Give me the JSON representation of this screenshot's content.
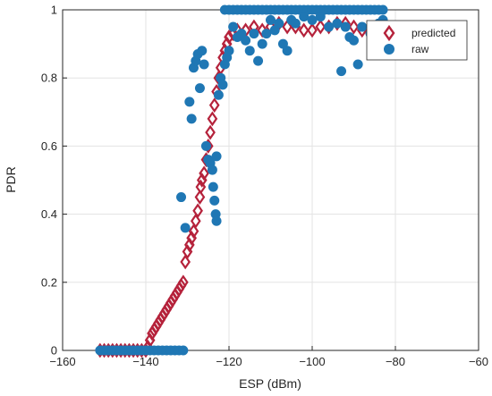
{
  "chart_data": {
    "type": "scatter",
    "xlabel": "ESP (dBm)",
    "ylabel": "PDR",
    "xlim": [
      -160,
      -60
    ],
    "ylim": [
      0,
      1
    ],
    "x_ticks": [
      -160,
      -140,
      -120,
      -100,
      -80,
      -60
    ],
    "y_ticks": [
      0,
      0.2,
      0.4,
      0.6,
      0.8,
      1
    ],
    "x_tick_labels": [
      "−160",
      "−140",
      "−120",
      "−100",
      "−80",
      "−60"
    ],
    "y_tick_labels": [
      "0",
      "0.2",
      "0.4",
      "0.6",
      "0.8",
      "1"
    ],
    "grid": true,
    "legend_position": "top-right",
    "series": [
      {
        "name": "predicted",
        "marker": "diamond",
        "color": "#b5223b",
        "points": [
          [
            -151,
            0
          ],
          [
            -150,
            0
          ],
          [
            -149,
            0
          ],
          [
            -148,
            0
          ],
          [
            -147,
            0
          ],
          [
            -146,
            0
          ],
          [
            -145,
            0
          ],
          [
            -144,
            0
          ],
          [
            -143,
            0
          ],
          [
            -142,
            0
          ],
          [
            -141,
            0
          ],
          [
            -140,
            0
          ],
          [
            -139.5,
            0.01
          ],
          [
            -139,
            0.03
          ],
          [
            -138.5,
            0.05
          ],
          [
            -138,
            0.06
          ],
          [
            -137.5,
            0.07
          ],
          [
            -137,
            0.08
          ],
          [
            -136.5,
            0.09
          ],
          [
            -136,
            0.1
          ],
          [
            -135.5,
            0.11
          ],
          [
            -135,
            0.12
          ],
          [
            -134.5,
            0.13
          ],
          [
            -134,
            0.14
          ],
          [
            -133.5,
            0.15
          ],
          [
            -133,
            0.16
          ],
          [
            -132.5,
            0.17
          ],
          [
            -132,
            0.18
          ],
          [
            -131.5,
            0.19
          ],
          [
            -131,
            0.2
          ],
          [
            -130.5,
            0.26
          ],
          [
            -130,
            0.29
          ],
          [
            -129.5,
            0.31
          ],
          [
            -129,
            0.33
          ],
          [
            -128.5,
            0.35
          ],
          [
            -128,
            0.38
          ],
          [
            -127.5,
            0.41
          ],
          [
            -127,
            0.45
          ],
          [
            -126.8,
            0.48
          ],
          [
            -126.5,
            0.5
          ],
          [
            -126,
            0.52
          ],
          [
            -125.5,
            0.56
          ],
          [
            -125,
            0.6
          ],
          [
            -124.5,
            0.64
          ],
          [
            -124,
            0.68
          ],
          [
            -123.5,
            0.72
          ],
          [
            -123,
            0.76
          ],
          [
            -122.5,
            0.8
          ],
          [
            -122,
            0.83
          ],
          [
            -121.5,
            0.86
          ],
          [
            -121,
            0.88
          ],
          [
            -120.5,
            0.9
          ],
          [
            -120,
            0.92
          ],
          [
            -119,
            0.93
          ],
          [
            -118,
            0.94
          ],
          [
            -116,
            0.94
          ],
          [
            -114,
            0.95
          ],
          [
            -112,
            0.94
          ],
          [
            -110,
            0.95
          ],
          [
            -108,
            0.96
          ],
          [
            -106,
            0.95
          ],
          [
            -104,
            0.95
          ],
          [
            -102,
            0.94
          ],
          [
            -100,
            0.94
          ],
          [
            -98,
            0.95
          ],
          [
            -96,
            0.95
          ],
          [
            -94,
            0.96
          ],
          [
            -92,
            0.96
          ],
          [
            -90,
            0.95
          ],
          [
            -88,
            0.94
          ],
          [
            -86,
            0.93
          ],
          [
            -84,
            0.93
          ],
          [
            -82,
            0.92
          ]
        ]
      },
      {
        "name": "raw",
        "marker": "circle",
        "color": "#1f77b4",
        "points": [
          [
            -151,
            0
          ],
          [
            -150,
            0
          ],
          [
            -149,
            0
          ],
          [
            -148,
            0
          ],
          [
            -147,
            0
          ],
          [
            -146,
            0
          ],
          [
            -145,
            0
          ],
          [
            -144,
            0
          ],
          [
            -143,
            0
          ],
          [
            -142,
            0
          ],
          [
            -141,
            0
          ],
          [
            -140,
            0
          ],
          [
            -139,
            0
          ],
          [
            -138,
            0
          ],
          [
            -137,
            0
          ],
          [
            -136,
            0
          ],
          [
            -135,
            0
          ],
          [
            -134,
            0
          ],
          [
            -133,
            0
          ],
          [
            -132,
            0
          ],
          [
            -131,
            0
          ],
          [
            -131.5,
            0.45
          ],
          [
            -130.5,
            0.36
          ],
          [
            -129.5,
            0.73
          ],
          [
            -129,
            0.68
          ],
          [
            -128.5,
            0.83
          ],
          [
            -128,
            0.85
          ],
          [
            -127.5,
            0.87
          ],
          [
            -127,
            0.77
          ],
          [
            -126.5,
            0.88
          ],
          [
            -126,
            0.84
          ],
          [
            -125.5,
            0.6
          ],
          [
            -125,
            0.56
          ],
          [
            -124.5,
            0.55
          ],
          [
            -124,
            0.53
          ],
          [
            -123.8,
            0.48
          ],
          [
            -123.5,
            0.44
          ],
          [
            -123.2,
            0.4
          ],
          [
            -123,
            0.38
          ],
          [
            -123,
            0.57
          ],
          [
            -122.5,
            0.75
          ],
          [
            -122,
            0.8
          ],
          [
            -121.5,
            0.78
          ],
          [
            -121,
            0.84
          ],
          [
            -120.5,
            0.86
          ],
          [
            -120,
            0.88
          ],
          [
            -121,
            1
          ],
          [
            -120,
            1
          ],
          [
            -119,
            1
          ],
          [
            -118,
            1
          ],
          [
            -117,
            1
          ],
          [
            -116,
            1
          ],
          [
            -115,
            1
          ],
          [
            -114,
            1
          ],
          [
            -113,
            1
          ],
          [
            -112,
            1
          ],
          [
            -111,
            1
          ],
          [
            -110,
            1
          ],
          [
            -109,
            1
          ],
          [
            -108,
            1
          ],
          [
            -107,
            1
          ],
          [
            -106,
            1
          ],
          [
            -105,
            1
          ],
          [
            -104,
            1
          ],
          [
            -103,
            1
          ],
          [
            -102,
            1
          ],
          [
            -101,
            1
          ],
          [
            -100,
            1
          ],
          [
            -99,
            1
          ],
          [
            -98,
            1
          ],
          [
            -97,
            1
          ],
          [
            -96,
            1
          ],
          [
            -95,
            1
          ],
          [
            -94,
            1
          ],
          [
            -93,
            1
          ],
          [
            -92,
            1
          ],
          [
            -91,
            1
          ],
          [
            -90,
            1
          ],
          [
            -89,
            1
          ],
          [
            -88,
            1
          ],
          [
            -87,
            1
          ],
          [
            -86,
            1
          ],
          [
            -85,
            1
          ],
          [
            -84,
            1
          ],
          [
            -83,
            1
          ],
          [
            -119,
            0.95
          ],
          [
            -118,
            0.92
          ],
          [
            -117,
            0.93
          ],
          [
            -116,
            0.91
          ],
          [
            -115,
            0.88
          ],
          [
            -114,
            0.93
          ],
          [
            -113,
            0.85
          ],
          [
            -112,
            0.9
          ],
          [
            -111,
            0.93
          ],
          [
            -110,
            0.97
          ],
          [
            -109,
            0.94
          ],
          [
            -108,
            0.96
          ],
          [
            -107,
            0.9
          ],
          [
            -106,
            0.88
          ],
          [
            -105,
            0.97
          ],
          [
            -104,
            0.96
          ],
          [
            -102,
            0.98
          ],
          [
            -100,
            0.97
          ],
          [
            -98,
            0.98
          ],
          [
            -96,
            0.95
          ],
          [
            -94,
            0.96
          ],
          [
            -93,
            0.82
          ],
          [
            -92,
            0.95
          ],
          [
            -91,
            0.92
          ],
          [
            -90,
            0.91
          ],
          [
            -89,
            0.84
          ],
          [
            -88,
            0.95
          ],
          [
            -86,
            0.93
          ],
          [
            -85,
            0.91
          ],
          [
            -84,
            0.96
          ],
          [
            -83,
            0.97
          ]
        ]
      }
    ]
  }
}
